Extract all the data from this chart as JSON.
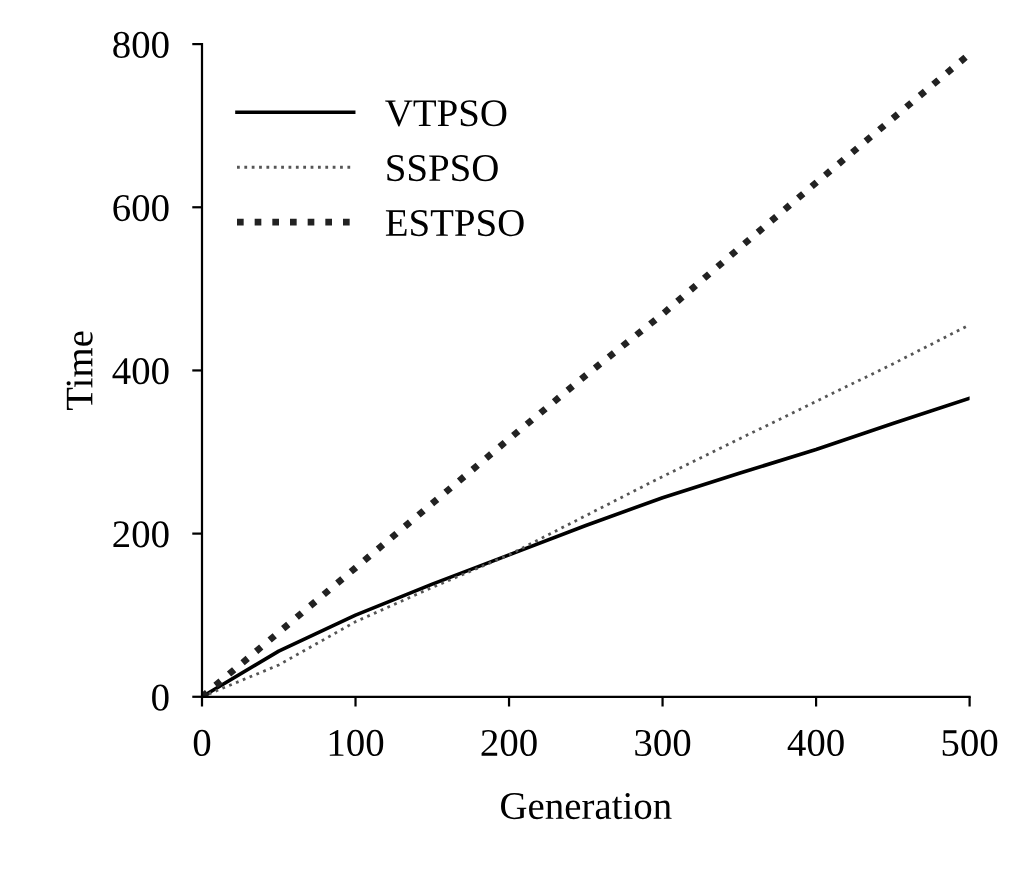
{
  "chart_data": {
    "type": "line",
    "xlabel": "Generation",
    "ylabel": "Time",
    "x": [
      0,
      50,
      100,
      150,
      200,
      250,
      300,
      350,
      400,
      450,
      500
    ],
    "series": [
      {
        "name": "VTPSO",
        "color": "#000000",
        "line_style": "solid",
        "values": [
          0,
          56,
          100,
          138,
          174,
          210,
          244,
          274,
          303,
          335,
          366
        ]
      },
      {
        "name": "SSPSO",
        "color": "#555555",
        "line_style": "dotted",
        "values": [
          0,
          39,
          92,
          134,
          174,
          222,
          270,
          316,
          362,
          408,
          456
        ]
      },
      {
        "name": "ESTPSO",
        "color": "#222222",
        "line_style": "dotted",
        "values": [
          0,
          79,
          158,
          237,
          316,
          394,
          469,
          550,
          630,
          709,
          788
        ]
      }
    ],
    "xlim": [
      0,
      500
    ],
    "ylim": [
      0,
      800
    ],
    "xticks": [
      0,
      100,
      200,
      300,
      400,
      500
    ],
    "yticks": [
      0,
      200,
      400,
      600,
      800
    ],
    "grid": false,
    "legend": "top left",
    "marker": "none"
  }
}
